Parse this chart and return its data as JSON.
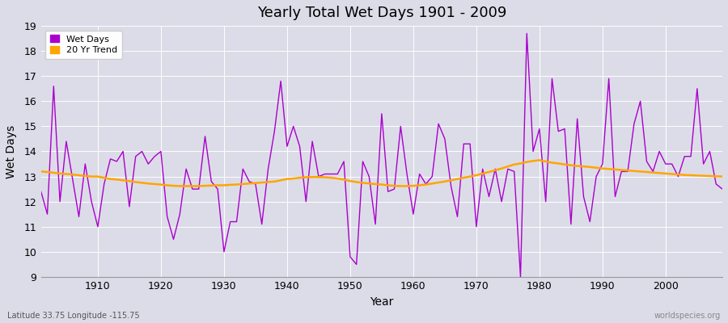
{
  "title": "Yearly Total Wet Days 1901 - 2009",
  "xlabel": "Year",
  "ylabel": "Wet Days",
  "subtitle_left": "Latitude 33.75 Longitude -115.75",
  "subtitle_right": "worldspecies.org",
  "wet_days_color": "#AA00CC",
  "trend_color": "#FFA500",
  "bg_color": "#DCDCE8",
  "fig_bg_color": "#DCDCE8",
  "ylim": [
    9,
    19
  ],
  "yticks": [
    9,
    10,
    11,
    12,
    13,
    14,
    15,
    16,
    17,
    18,
    19
  ],
  "xlim": [
    1901,
    2009
  ],
  "xticks": [
    1910,
    1920,
    1930,
    1940,
    1950,
    1960,
    1970,
    1980,
    1990,
    2000
  ],
  "years": [
    1901,
    1902,
    1903,
    1904,
    1905,
    1906,
    1907,
    1908,
    1909,
    1910,
    1911,
    1912,
    1913,
    1914,
    1915,
    1916,
    1917,
    1918,
    1919,
    1920,
    1921,
    1922,
    1923,
    1924,
    1925,
    1926,
    1927,
    1928,
    1929,
    1930,
    1931,
    1932,
    1933,
    1934,
    1935,
    1936,
    1937,
    1938,
    1939,
    1940,
    1941,
    1942,
    1943,
    1944,
    1945,
    1946,
    1947,
    1948,
    1949,
    1950,
    1951,
    1952,
    1953,
    1954,
    1955,
    1956,
    1957,
    1958,
    1959,
    1960,
    1961,
    1962,
    1963,
    1964,
    1965,
    1966,
    1967,
    1968,
    1969,
    1970,
    1971,
    1972,
    1973,
    1974,
    1975,
    1976,
    1977,
    1978,
    1979,
    1980,
    1981,
    1982,
    1983,
    1984,
    1985,
    1986,
    1987,
    1988,
    1989,
    1990,
    1991,
    1992,
    1993,
    1994,
    1995,
    1996,
    1997,
    1998,
    1999,
    2000,
    2001,
    2002,
    2003,
    2004,
    2005,
    2006,
    2007,
    2008,
    2009
  ],
  "wet_days": [
    12.4,
    11.5,
    16.6,
    12.0,
    14.4,
    12.9,
    11.4,
    13.5,
    12.0,
    11.0,
    12.7,
    13.7,
    13.6,
    14.0,
    11.8,
    13.8,
    14.0,
    13.5,
    13.8,
    14.0,
    11.4,
    10.5,
    11.5,
    13.3,
    12.5,
    12.5,
    14.6,
    12.8,
    12.5,
    10.0,
    11.2,
    11.2,
    13.3,
    12.8,
    12.7,
    11.1,
    13.3,
    14.8,
    16.8,
    14.2,
    15.0,
    14.2,
    12.0,
    14.4,
    13.0,
    13.1,
    13.1,
    13.1,
    13.6,
    9.8,
    9.5,
    13.6,
    13.0,
    11.1,
    15.5,
    12.4,
    12.5,
    15.0,
    13.1,
    11.5,
    13.1,
    12.7,
    13.0,
    15.1,
    14.5,
    12.6,
    11.4,
    14.3,
    14.3,
    11.0,
    13.3,
    12.2,
    13.3,
    12.0,
    13.3,
    13.2,
    9.0,
    18.7,
    14.0,
    14.9,
    12.0,
    16.9,
    14.8,
    14.9,
    11.1,
    15.3,
    12.2,
    11.2,
    13.0,
    13.5,
    16.9,
    12.2,
    13.2,
    13.2,
    15.1,
    16.0,
    13.6,
    13.2,
    14.0,
    13.5,
    13.5,
    13.0,
    13.8,
    13.8,
    16.5,
    13.5,
    14.0,
    12.7,
    12.5
  ],
  "trend_years": [
    1901,
    1902,
    1903,
    1904,
    1905,
    1906,
    1907,
    1908,
    1909,
    1910,
    1911,
    1912,
    1913,
    1914,
    1915,
    1916,
    1917,
    1918,
    1919,
    1920,
    1921,
    1922,
    1923,
    1924,
    1925,
    1926,
    1927,
    1928,
    1929,
    1930,
    1931,
    1932,
    1933,
    1934,
    1935,
    1936,
    1937,
    1938,
    1939,
    1940,
    1941,
    1942,
    1943,
    1944,
    1945,
    1946,
    1947,
    1948,
    1949,
    1950,
    1951,
    1952,
    1953,
    1954,
    1955,
    1956,
    1957,
    1958,
    1959,
    1960,
    1961,
    1962,
    1963,
    1964,
    1965,
    1966,
    1967,
    1968,
    1969,
    1970,
    1971,
    1972,
    1973,
    1974,
    1975,
    1976,
    1977,
    1978,
    1979,
    1980,
    1981,
    1982,
    1983,
    1984,
    1985,
    1986,
    1987,
    1988,
    1989,
    1990,
    1991,
    1992,
    1993,
    1994,
    1995,
    1996,
    1997,
    1998,
    1999,
    2000,
    2001,
    2002,
    2003,
    2004,
    2005,
    2006,
    2007,
    2008,
    2009
  ],
  "trend_values": [
    13.2,
    13.18,
    13.15,
    13.12,
    13.1,
    13.08,
    13.05,
    13.02,
    13.0,
    13.0,
    12.95,
    12.9,
    12.88,
    12.85,
    12.82,
    12.78,
    12.75,
    12.72,
    12.7,
    12.68,
    12.65,
    12.63,
    12.62,
    12.62,
    12.62,
    12.62,
    12.63,
    12.64,
    12.65,
    12.65,
    12.67,
    12.68,
    12.7,
    12.72,
    12.74,
    12.76,
    12.78,
    12.8,
    12.85,
    12.9,
    12.92,
    12.95,
    12.97,
    12.98,
    12.98,
    12.97,
    12.95,
    12.92,
    12.88,
    12.82,
    12.78,
    12.75,
    12.72,
    12.7,
    12.68,
    12.65,
    12.63,
    12.62,
    12.62,
    12.63,
    12.65,
    12.68,
    12.72,
    12.76,
    12.8,
    12.85,
    12.9,
    12.95,
    13.0,
    13.05,
    13.12,
    13.18,
    13.25,
    13.32,
    13.4,
    13.48,
    13.52,
    13.58,
    13.62,
    13.65,
    13.6,
    13.55,
    13.52,
    13.48,
    13.45,
    13.42,
    13.4,
    13.38,
    13.35,
    13.32,
    13.3,
    13.28,
    13.26,
    13.24,
    13.22,
    13.2,
    13.18,
    13.16,
    13.14,
    13.12,
    13.1,
    13.08,
    13.06,
    13.05,
    13.04,
    13.03,
    13.02,
    13.01,
    13.0
  ]
}
